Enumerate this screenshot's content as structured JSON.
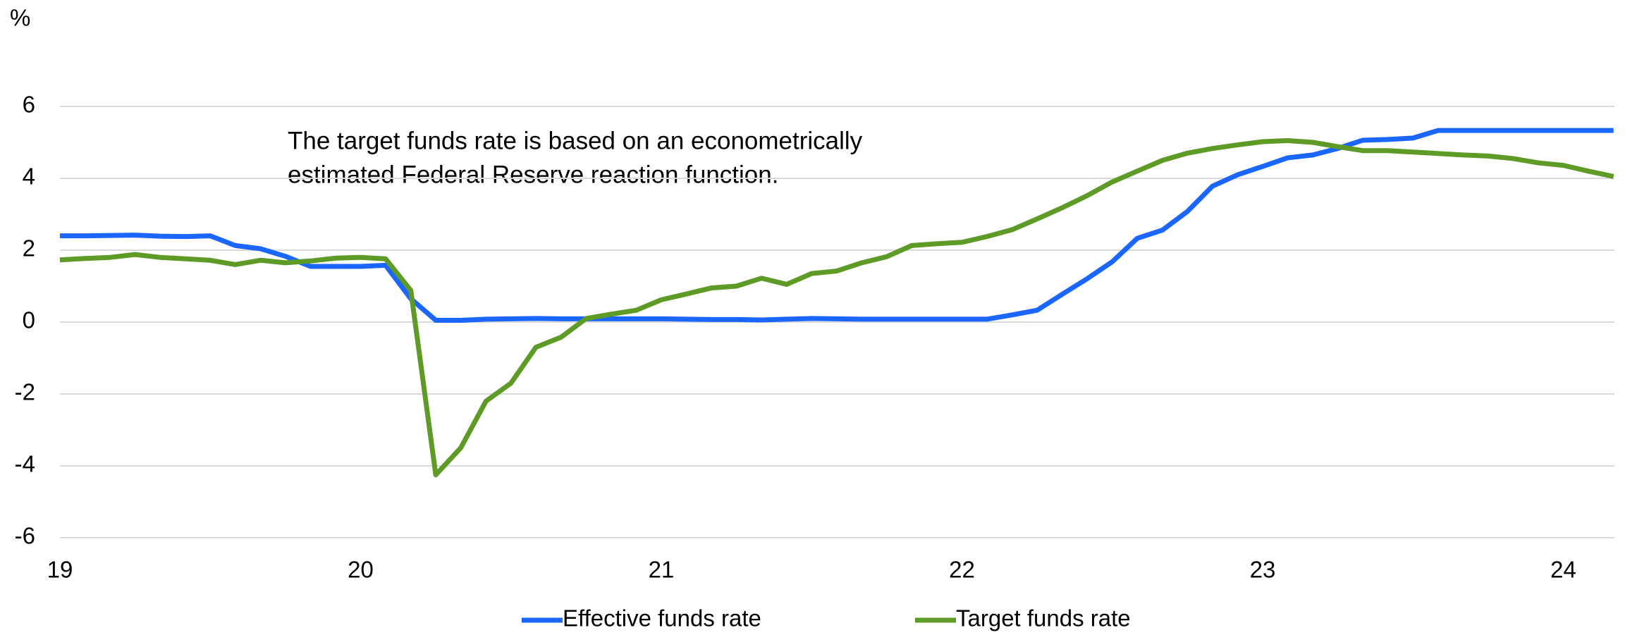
{
  "chart_data": {
    "type": "line",
    "y_label": "%",
    "annotation": [
      "The target funds rate is based on an econometrically",
      "estimated Federal Reserve reaction function."
    ],
    "x": [
      19,
      19.083,
      19.167,
      19.25,
      19.333,
      19.417,
      19.5,
      19.583,
      19.667,
      19.75,
      19.833,
      19.917,
      20,
      20.083,
      20.167,
      20.25,
      20.333,
      20.417,
      20.5,
      20.583,
      20.667,
      20.75,
      20.833,
      20.917,
      21,
      21.083,
      21.167,
      21.25,
      21.333,
      21.417,
      21.5,
      21.583,
      21.667,
      21.75,
      21.833,
      21.917,
      22,
      22.083,
      22.167,
      22.25,
      22.333,
      22.417,
      22.5,
      22.583,
      22.667,
      22.75,
      22.833,
      22.917,
      23,
      23.083,
      23.167,
      23.25,
      23.333,
      23.417,
      23.5,
      23.583,
      23.667,
      23.75,
      23.833,
      23.917,
      24,
      24.083,
      24.167
    ],
    "series": [
      {
        "name": "Effective funds rate",
        "color": "#1a66ff",
        "values": [
          2.4,
          2.4,
          2.41,
          2.42,
          2.39,
          2.38,
          2.4,
          2.13,
          2.04,
          1.83,
          1.55,
          1.55,
          1.55,
          1.58,
          0.65,
          0.05,
          0.05,
          0.08,
          0.09,
          0.1,
          0.09,
          0.09,
          0.09,
          0.09,
          0.09,
          0.08,
          0.07,
          0.07,
          0.06,
          0.08,
          0.1,
          0.09,
          0.08,
          0.08,
          0.08,
          0.08,
          0.08,
          0.08,
          0.2,
          0.33,
          0.77,
          1.21,
          1.68,
          2.33,
          2.56,
          3.08,
          3.78,
          4.1,
          4.33,
          4.57,
          4.65,
          4.83,
          5.06,
          5.08,
          5.12,
          5.33,
          5.33,
          5.33,
          5.33,
          5.33,
          5.33,
          5.33,
          5.33
        ]
      },
      {
        "name": "Target funds rate",
        "color": "#5e9b26",
        "values": [
          1.73,
          1.77,
          1.8,
          1.88,
          1.8,
          1.76,
          1.72,
          1.6,
          1.72,
          1.65,
          1.7,
          1.78,
          1.8,
          1.76,
          0.88,
          -4.25,
          -3.5,
          -2.2,
          -1.7,
          -0.7,
          -0.42,
          0.1,
          0.22,
          0.33,
          0.62,
          0.78,
          0.95,
          1.0,
          1.22,
          1.05,
          1.35,
          1.42,
          1.65,
          1.82,
          2.13,
          2.18,
          2.22,
          2.38,
          2.57,
          2.87,
          3.18,
          3.52,
          3.9,
          4.2,
          4.5,
          4.7,
          4.83,
          4.93,
          5.02,
          5.05,
          5.0,
          4.88,
          4.77,
          4.77,
          4.73,
          4.69,
          4.65,
          4.62,
          4.55,
          4.43,
          4.36,
          4.2,
          4.05
        ]
      }
    ],
    "xlim": [
      19,
      24.17
    ],
    "xticks": [
      19,
      20,
      21,
      22,
      23,
      24
    ],
    "ylim": [
      -6,
      8
    ],
    "yticks": [
      -6,
      -4,
      -2,
      0,
      2,
      4,
      6
    ],
    "grid": true,
    "legend": "bottom"
  }
}
